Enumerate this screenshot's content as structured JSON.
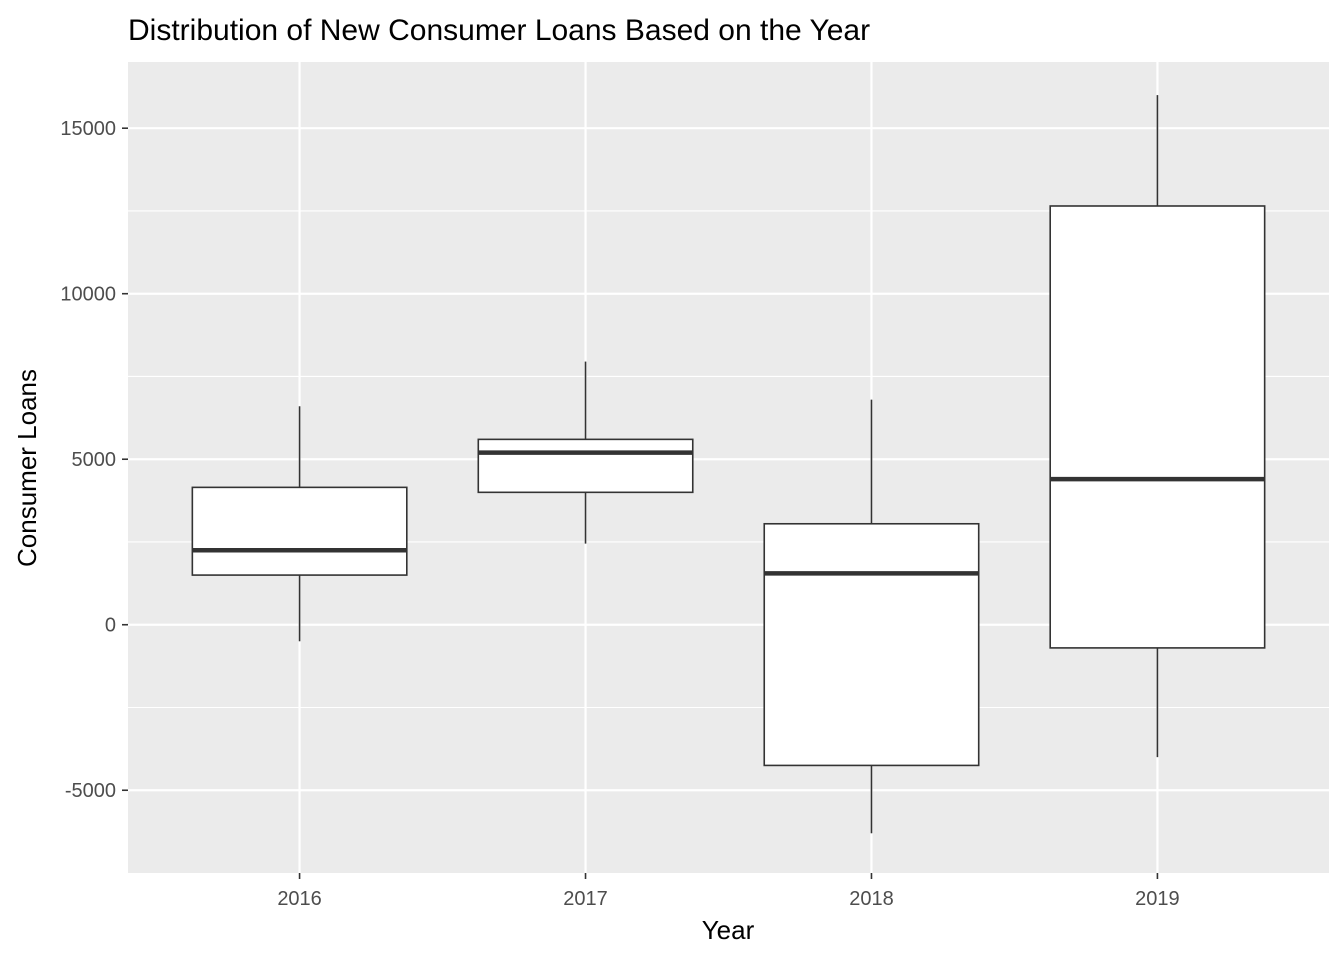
{
  "chart_data": {
    "type": "boxplot",
    "title": "Distribution of New Consumer Loans Based on the Year",
    "xlabel": "Year",
    "ylabel": "Consumer Loans",
    "categories": [
      "2016",
      "2017",
      "2018",
      "2019"
    ],
    "boxes": [
      {
        "category": "2016",
        "whisker_low": -500,
        "q1": 1500,
        "median": 2250,
        "q3": 4150,
        "whisker_high": 6600
      },
      {
        "category": "2017",
        "whisker_low": 2450,
        "q1": 4000,
        "median": 5200,
        "q3": 5600,
        "whisker_high": 7950
      },
      {
        "category": "2018",
        "whisker_low": -6300,
        "q1": -4250,
        "median": 1550,
        "q3": 3050,
        "whisker_high": 6800
      },
      {
        "category": "2019",
        "whisker_low": -4000,
        "q1": -700,
        "median": 4400,
        "q3": 12650,
        "whisker_high": 16000
      }
    ],
    "yticks": [
      -5000,
      0,
      5000,
      10000,
      15000
    ],
    "ytick_labels": [
      "-5000",
      "0",
      "5000",
      "10000",
      "15000"
    ],
    "ylim": [
      -7500,
      17000
    ],
    "grid": true,
    "legend": "none",
    "colors": {
      "panel_background": "#EBEBEB",
      "grid_major": "#FFFFFF",
      "box_fill": "#FFFFFF",
      "box_line": "#333333",
      "tick_text": "#4D4D4D"
    }
  }
}
